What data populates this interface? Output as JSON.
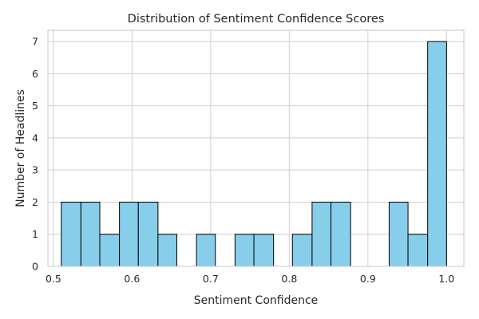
{
  "chart_data": {
    "type": "bar",
    "title": "Distribution of Sentiment Confidence Scores",
    "xlabel": "Sentiment Confidence",
    "ylabel": "Number of Headlines",
    "xlim": [
      0.493,
      1.022
    ],
    "ylim": [
      0,
      7.35
    ],
    "xticks": [
      0.5,
      0.6,
      0.7,
      0.8,
      0.9,
      1.0
    ],
    "xtick_labels": [
      "0.5",
      "0.6",
      "0.7",
      "0.8",
      "0.9",
      "1.0"
    ],
    "yticks": [
      0,
      1,
      2,
      3,
      4,
      5,
      6,
      7
    ],
    "ytick_labels": [
      "0",
      "1",
      "2",
      "3",
      "4",
      "5",
      "6",
      "7"
    ],
    "grid": true,
    "bin_edges": [
      0.51,
      0.535,
      0.559,
      0.584,
      0.608,
      0.633,
      0.657,
      0.682,
      0.706,
      0.731,
      0.755,
      0.78,
      0.804,
      0.829,
      0.853,
      0.878,
      0.902,
      0.927,
      0.951,
      0.976,
      1.0
    ],
    "counts": [
      2,
      2,
      1,
      2,
      2,
      1,
      0,
      1,
      0,
      1,
      1,
      0,
      1,
      2,
      2,
      0,
      0,
      2,
      1,
      7
    ],
    "bar_color": "#87ceeb",
    "edge_color": "#000000",
    "grid_color": "#cfcfcf"
  }
}
